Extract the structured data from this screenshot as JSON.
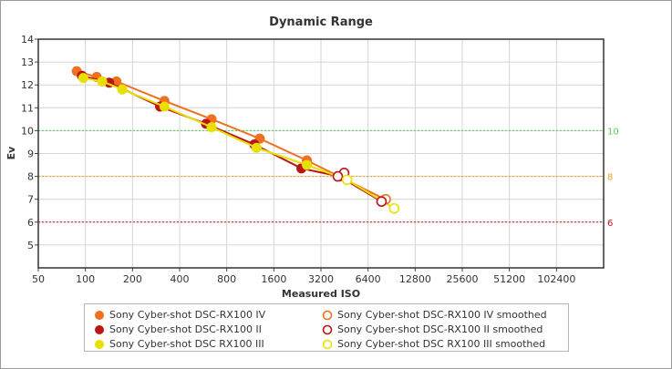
{
  "chart_data": {
    "type": "line",
    "title": "Dynamic Range",
    "xlabel": "Measured ISO",
    "ylabel": "Ev",
    "xscale": "log2",
    "xlim": [
      50,
      204800
    ],
    "ylim": [
      4,
      14
    ],
    "x_ticks": [
      {
        "value": 50,
        "label": "50"
      },
      {
        "value": 100,
        "label": "100"
      },
      {
        "value": 200,
        "label": "200"
      },
      {
        "value": 400,
        "label": "400"
      },
      {
        "value": 800,
        "label": "800"
      },
      {
        "value": 1600,
        "label": "1600"
      },
      {
        "value": 3200,
        "label": "3200"
      },
      {
        "value": 6400,
        "label": "6400"
      },
      {
        "value": 12800,
        "label": "12800"
      },
      {
        "value": 25600,
        "label": "25600"
      },
      {
        "value": 51200,
        "label": "51200"
      },
      {
        "value": 102400,
        "label": "102400"
      }
    ],
    "y_ticks": [
      {
        "value": 5,
        "label": "5"
      },
      {
        "value": 6,
        "label": "6"
      },
      {
        "value": 7,
        "label": "7"
      },
      {
        "value": 8,
        "label": "8"
      },
      {
        "value": 9,
        "label": "9"
      },
      {
        "value": 10,
        "label": "10"
      },
      {
        "value": 11,
        "label": "11"
      },
      {
        "value": 12,
        "label": "12"
      },
      {
        "value": 13,
        "label": "13"
      },
      {
        "value": 14,
        "label": "14"
      }
    ],
    "grid": true,
    "legend_position": "bottom",
    "reference_lines": [
      {
        "y": 10,
        "label": "10",
        "color": "#55d055"
      },
      {
        "y": 8,
        "label": "8",
        "color": "#f0a020"
      },
      {
        "y": 6,
        "label": "6",
        "color": "#cc1111"
      }
    ],
    "series": [
      {
        "name": "Sony Cyber-shot DSC-RX100 IV",
        "style": "line-filled",
        "color": "#f07020",
        "points": [
          [
            88,
            12.6
          ],
          [
            118,
            12.35
          ],
          [
            158,
            12.15
          ],
          [
            320,
            11.3
          ],
          [
            640,
            10.5
          ],
          [
            1300,
            9.65
          ],
          [
            2600,
            8.7
          ],
          [
            8200,
            7.0
          ]
        ]
      },
      {
        "name": "Sony Cyber-shot DSC-RX100 II",
        "style": "line-filled",
        "color": "#bb1515",
        "points": [
          [
            95,
            12.4
          ],
          [
            142,
            12.1
          ],
          [
            300,
            11.05
          ],
          [
            590,
            10.3
          ],
          [
            1200,
            9.4
          ],
          [
            2400,
            8.35
          ],
          [
            4200,
            8.0
          ],
          [
            7800,
            6.9
          ]
        ]
      },
      {
        "name": "Sony Cyber-shot DSC RX100 III",
        "style": "line-filled",
        "color": "#e8e000",
        "points": [
          [
            97,
            12.3
          ],
          [
            128,
            12.15
          ],
          [
            172,
            11.8
          ],
          [
            320,
            11.05
          ],
          [
            640,
            10.15
          ],
          [
            1240,
            9.25
          ],
          [
            2600,
            8.5
          ],
          [
            4700,
            7.85
          ],
          [
            9400,
            6.6
          ]
        ]
      },
      {
        "name": "Sony Cyber-shot DSC-RX100 IV smoothed",
        "style": "open",
        "color": "#f07020",
        "points": [
          [
            8300,
            7.0
          ]
        ]
      },
      {
        "name": "Sony Cyber-shot DSC-RX100 II smoothed",
        "style": "open",
        "color": "#bb1515",
        "points": [
          [
            4500,
            8.15
          ],
          [
            4100,
            8.0
          ],
          [
            7800,
            6.9
          ]
        ]
      },
      {
        "name": "Sony Cyber-shot DSC RX100 III smoothed",
        "style": "open",
        "color": "#e8e000",
        "points": [
          [
            4700,
            7.85
          ],
          [
            9400,
            6.6
          ]
        ]
      }
    ]
  }
}
